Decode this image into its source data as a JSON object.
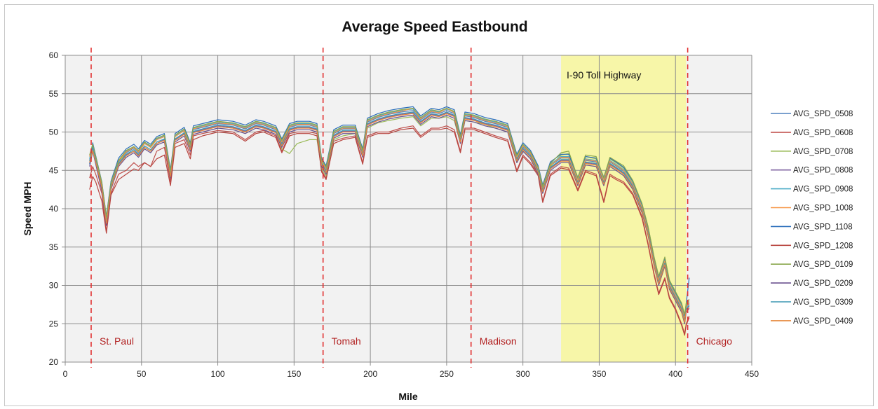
{
  "chart_data": {
    "type": "line",
    "title": "Average Speed Eastbound",
    "xlabel": "Mile",
    "ylabel": "Speed MPH",
    "xlim": [
      0,
      450
    ],
    "ylim": [
      20,
      60
    ],
    "xticks": [
      0,
      50,
      100,
      150,
      200,
      250,
      300,
      350,
      400,
      450
    ],
    "yticks": [
      20,
      25,
      30,
      35,
      40,
      45,
      50,
      55,
      60
    ],
    "grid": true,
    "legend_position": "right",
    "x": [
      16,
      18,
      20,
      24,
      27,
      30,
      35,
      40,
      45,
      48,
      52,
      56,
      60,
      65,
      69,
      72,
      78,
      82,
      84,
      90,
      100,
      110,
      118,
      125,
      130,
      138,
      142,
      147,
      152,
      160,
      165,
      168,
      171,
      176,
      182,
      190,
      195,
      198,
      205,
      212,
      220,
      228,
      233,
      240,
      245,
      250,
      255,
      259,
      262,
      268,
      275,
      282,
      290,
      296,
      300,
      305,
      310,
      313,
      318,
      325,
      330,
      336,
      341,
      348,
      353,
      357,
      361,
      366,
      372,
      378,
      382,
      386,
      389,
      393,
      396,
      400,
      404,
      406,
      407,
      409
    ],
    "base": [
      46.5,
      48.2,
      46.5,
      43.0,
      38.5,
      43.0,
      46.0,
      47.2,
      47.8,
      47.2,
      48.3,
      47.8,
      48.8,
      49.2,
      44.5,
      49.2,
      50.0,
      48.0,
      50.2,
      50.5,
      51.0,
      50.8,
      50.3,
      51.0,
      50.8,
      50.2,
      48.5,
      50.5,
      50.8,
      50.8,
      50.5,
      46.0,
      45.0,
      49.7,
      50.3,
      50.3,
      47.2,
      51.2,
      51.8,
      52.2,
      52.5,
      52.7,
      51.5,
      52.5,
      52.3,
      52.7,
      52.3,
      49.0,
      52.0,
      51.8,
      51.3,
      51.0,
      50.5,
      46.5,
      48.0,
      47.0,
      45.0,
      42.5,
      45.5,
      46.5,
      46.5,
      43.5,
      46.2,
      46.0,
      43.5,
      46.0,
      45.5,
      44.8,
      43.0,
      40.0,
      37.0,
      33.0,
      30.5,
      33.0,
      30.0,
      28.5,
      27.0,
      25.5,
      27.0,
      27.5
    ],
    "series": [
      {
        "name": "AVG_SPD_0508",
        "values": [
          46.3,
          48.1,
          46.5,
          43.2,
          38.6,
          43.2,
          46.1,
          47.3,
          47.9,
          47.3,
          48.5,
          48.0,
          49.0,
          49.4,
          44.6,
          49.4,
          50.2,
          48.1,
          50.3,
          50.6,
          51.1,
          50.9,
          50.4,
          51.1,
          50.9,
          50.3,
          48.6,
          50.6,
          50.9,
          50.9,
          50.6,
          46.1,
          45.1,
          49.8,
          50.4,
          50.4,
          47.3,
          51.3,
          51.9,
          52.3,
          52.6,
          52.8,
          51.6,
          52.6,
          52.4,
          52.8,
          52.4,
          49.1,
          52.1,
          51.9,
          51.4,
          51.1,
          50.6,
          46.6,
          48.1,
          47.1,
          45.1,
          42.6,
          45.6,
          46.6,
          46.6,
          43.6,
          46.3,
          46.1,
          43.6,
          46.1,
          45.6,
          44.9,
          43.1,
          40.1,
          37.1,
          33.1,
          30.6,
          33.1,
          30.1,
          28.6,
          27.1,
          25.6,
          27.1,
          27.6
        ]
      },
      {
        "name": "AVG_SPD_0608",
        "values": [
          44.0,
          45.5,
          44.5,
          42.0,
          37.0,
          42.0,
          44.5,
          45.0,
          46.0,
          45.5,
          46.0,
          45.5,
          47.5,
          48.0,
          43.5,
          48.5,
          49.0,
          47.0,
          49.5,
          49.8,
          50.2,
          50.0,
          49.0,
          50.0,
          50.2,
          49.5,
          47.5,
          49.8,
          50.0,
          50.0,
          49.8,
          45.0,
          44.0,
          48.8,
          49.2,
          49.5,
          46.0,
          49.5,
          50.0,
          50.0,
          50.5,
          50.8,
          49.5,
          50.5,
          50.5,
          50.8,
          50.3,
          47.5,
          50.5,
          50.5,
          50.0,
          49.5,
          49.0,
          45.0,
          47.0,
          46.0,
          44.5,
          41.0,
          44.5,
          45.5,
          45.3,
          42.5,
          45.0,
          44.5,
          41.0,
          44.5,
          44.0,
          43.5,
          42.0,
          39.0,
          35.5,
          31.5,
          29.0,
          31.0,
          28.5,
          27.0,
          25.0,
          23.7,
          25.0,
          26.0
        ]
      },
      {
        "name": "AVG_SPD_0708",
        "values": [
          46.8,
          48.0,
          46.5,
          43.0,
          38.2,
          43.5,
          46.3,
          47.0,
          47.5,
          47.0,
          48.0,
          47.5,
          48.5,
          49.0,
          44.0,
          49.0,
          49.8,
          47.5,
          50.0,
          50.2,
          50.7,
          50.5,
          50.0,
          50.7,
          50.5,
          50.0,
          47.8,
          47.2,
          48.5,
          49.0,
          49.0,
          45.2,
          44.3,
          49.0,
          49.5,
          49.8,
          46.8,
          50.5,
          51.2,
          51.5,
          51.8,
          52.0,
          50.8,
          51.8,
          51.8,
          52.0,
          51.5,
          48.5,
          51.5,
          51.3,
          51.0,
          50.5,
          50.0,
          46.0,
          47.5,
          46.5,
          44.5,
          42.0,
          45.5,
          47.0,
          47.2,
          43.8,
          46.8,
          46.5,
          43.8,
          46.5,
          46.0,
          45.3,
          43.5,
          40.5,
          37.5,
          33.5,
          31.0,
          33.5,
          30.5,
          29.0,
          27.5,
          26.0,
          27.5,
          28.0
        ]
      },
      {
        "name": "AVG_SPD_0808",
        "values": [
          46.0,
          48.0,
          46.0,
          42.5,
          38.0,
          42.8,
          45.8,
          47.0,
          47.5,
          47.0,
          48.0,
          47.5,
          48.5,
          49.0,
          44.3,
          49.0,
          49.8,
          47.8,
          50.0,
          50.3,
          50.8,
          50.6,
          50.1,
          50.8,
          50.6,
          50.0,
          48.3,
          50.3,
          50.6,
          50.6,
          50.3,
          45.8,
          44.8,
          49.5,
          50.1,
          50.1,
          47.0,
          51.0,
          51.6,
          52.0,
          52.3,
          52.5,
          51.3,
          52.3,
          52.1,
          52.5,
          52.1,
          48.8,
          51.8,
          51.6,
          51.1,
          50.8,
          50.3,
          46.3,
          47.8,
          46.8,
          44.8,
          42.3,
          45.3,
          46.3,
          46.3,
          43.3,
          46.0,
          45.8,
          43.3,
          45.8,
          45.3,
          44.6,
          42.8,
          39.8,
          36.8,
          32.8,
          30.3,
          32.8,
          29.8,
          28.3,
          26.8,
          25.3,
          26.8,
          27.3
        ]
      },
      {
        "name": "AVG_SPD_0908",
        "values": [
          46.5,
          48.3,
          46.7,
          43.3,
          38.8,
          43.3,
          46.2,
          47.5,
          48.0,
          47.5,
          48.6,
          48.1,
          49.1,
          49.5,
          44.8,
          49.5,
          50.3,
          48.3,
          50.5,
          50.8,
          51.3,
          51.1,
          50.6,
          51.3,
          51.1,
          50.5,
          48.8,
          50.8,
          51.1,
          51.1,
          50.8,
          46.3,
          45.3,
          50.0,
          50.6,
          50.6,
          47.5,
          51.5,
          52.1,
          52.5,
          52.8,
          53.0,
          51.8,
          52.8,
          52.6,
          53.0,
          52.6,
          49.3,
          52.3,
          52.1,
          51.6,
          51.3,
          50.8,
          46.8,
          48.3,
          47.3,
          45.3,
          42.8,
          45.8,
          46.8,
          46.8,
          43.8,
          46.5,
          46.3,
          43.8,
          46.3,
          45.8,
          45.1,
          43.3,
          40.3,
          37.3,
          33.3,
          30.8,
          33.3,
          30.3,
          28.8,
          27.3,
          25.8,
          27.3,
          27.8
        ]
      },
      {
        "name": "AVG_SPD_1008",
        "values": [
          46.8,
          48.5,
          46.8,
          43.3,
          38.7,
          43.2,
          46.2,
          47.4,
          48.0,
          47.4,
          48.5,
          48.0,
          49.0,
          49.4,
          44.7,
          49.4,
          50.2,
          48.2,
          50.4,
          50.7,
          51.2,
          51.0,
          50.5,
          51.2,
          51.0,
          50.4,
          48.7,
          50.7,
          51.0,
          51.0,
          50.7,
          46.2,
          45.2,
          49.9,
          50.5,
          50.5,
          47.4,
          51.4,
          52.0,
          52.4,
          52.7,
          53.1,
          51.7,
          52.7,
          52.5,
          53.1,
          52.5,
          49.2,
          52.2,
          52.0,
          51.5,
          51.2,
          50.7,
          46.7,
          48.2,
          47.2,
          45.2,
          42.7,
          45.7,
          46.7,
          46.7,
          43.7,
          46.4,
          46.2,
          43.7,
          46.2,
          45.7,
          45.0,
          43.2,
          40.2,
          37.2,
          33.2,
          30.7,
          33.2,
          30.2,
          28.7,
          27.2,
          25.7,
          27.2,
          27.7
        ]
      },
      {
        "name": "AVG_SPD_1108",
        "values": [
          45.8,
          48.6,
          46.9,
          43.5,
          39.0,
          43.6,
          46.6,
          47.8,
          48.4,
          47.8,
          48.9,
          48.4,
          49.4,
          49.8,
          45.1,
          49.8,
          50.6,
          48.6,
          50.8,
          51.1,
          51.6,
          51.4,
          50.9,
          51.6,
          51.4,
          50.8,
          49.1,
          51.1,
          51.4,
          51.4,
          51.1,
          46.6,
          45.6,
          50.3,
          50.9,
          50.9,
          47.8,
          51.8,
          52.4,
          52.8,
          53.1,
          53.3,
          52.1,
          53.1,
          52.9,
          53.3,
          52.9,
          49.6,
          52.6,
          52.4,
          51.9,
          51.6,
          51.1,
          47.1,
          48.6,
          47.6,
          45.6,
          43.1,
          46.1,
          47.1,
          47.1,
          44.1,
          46.8,
          46.6,
          44.1,
          46.6,
          46.1,
          45.4,
          43.6,
          40.6,
          37.6,
          33.6,
          31.1,
          33.6,
          30.6,
          29.1,
          27.6,
          26.1,
          27.6,
          31.0
        ]
      },
      {
        "name": "AVG_SPD_1208",
        "values": [
          42.5,
          44.2,
          43.5,
          41.0,
          36.8,
          41.8,
          43.8,
          44.5,
          45.2,
          45.0,
          46.0,
          45.5,
          46.5,
          47.0,
          43.0,
          48.0,
          48.5,
          46.5,
          49.0,
          49.5,
          50.0,
          49.8,
          48.8,
          49.8,
          50.0,
          49.3,
          47.3,
          49.5,
          49.8,
          49.8,
          49.5,
          44.8,
          43.8,
          48.5,
          49.0,
          49.3,
          45.8,
          49.3,
          49.8,
          49.8,
          50.3,
          50.5,
          49.3,
          50.3,
          50.3,
          50.5,
          50.0,
          47.3,
          50.3,
          50.3,
          49.8,
          49.3,
          48.8,
          44.8,
          46.8,
          45.8,
          44.3,
          40.8,
          44.3,
          45.3,
          45.1,
          42.3,
          44.8,
          44.3,
          40.8,
          44.3,
          43.8,
          43.3,
          41.8,
          38.8,
          35.3,
          31.3,
          28.8,
          30.8,
          28.3,
          26.8,
          24.8,
          23.5,
          24.8,
          25.8
        ]
      },
      {
        "name": "AVG_SPD_0109",
        "values": [
          47.0,
          48.4,
          46.8,
          43.4,
          38.9,
          43.4,
          46.3,
          47.6,
          48.1,
          47.6,
          48.7,
          48.2,
          49.2,
          49.6,
          44.9,
          49.6,
          50.4,
          48.4,
          50.6,
          50.9,
          51.4,
          51.2,
          50.7,
          51.4,
          51.2,
          50.6,
          48.9,
          50.9,
          51.2,
          51.2,
          50.9,
          46.4,
          45.4,
          50.1,
          50.7,
          50.7,
          47.6,
          51.6,
          52.2,
          52.6,
          52.9,
          53.1,
          51.9,
          52.9,
          52.7,
          53.1,
          52.7,
          49.4,
          52.4,
          52.2,
          51.7,
          51.4,
          50.9,
          46.9,
          48.4,
          47.4,
          45.4,
          42.9,
          45.9,
          47.3,
          47.5,
          44.0,
          47.0,
          46.8,
          44.0,
          46.7,
          46.2,
          45.6,
          43.7,
          40.7,
          37.7,
          33.7,
          31.2,
          33.7,
          30.7,
          29.2,
          27.7,
          26.2,
          27.7,
          28.2
        ]
      },
      {
        "name": "AVG_SPD_0209",
        "values": [
          45.5,
          47.5,
          45.8,
          42.3,
          37.8,
          42.5,
          45.5,
          46.7,
          47.3,
          46.7,
          47.8,
          47.3,
          48.3,
          48.7,
          44.0,
          48.7,
          49.5,
          47.5,
          49.7,
          50.0,
          50.5,
          50.3,
          49.8,
          50.5,
          50.3,
          49.7,
          48.0,
          50.0,
          50.3,
          50.3,
          50.0,
          45.5,
          44.5,
          49.2,
          49.8,
          49.8,
          46.7,
          50.7,
          51.3,
          51.7,
          52.0,
          52.2,
          51.0,
          52.0,
          51.8,
          52.2,
          51.8,
          48.5,
          51.5,
          51.3,
          50.8,
          50.5,
          50.0,
          46.0,
          47.5,
          46.5,
          44.5,
          42.0,
          45.0,
          46.0,
          46.0,
          43.0,
          45.7,
          45.5,
          43.0,
          45.5,
          45.0,
          44.3,
          42.5,
          39.5,
          36.5,
          32.5,
          30.0,
          32.5,
          29.5,
          28.0,
          26.5,
          25.0,
          26.5,
          27.0
        ]
      },
      {
        "name": "AVG_SPD_0309",
        "values": [
          46.2,
          48.0,
          46.3,
          42.8,
          38.3,
          42.9,
          45.9,
          47.1,
          47.7,
          47.1,
          48.2,
          47.7,
          48.7,
          49.1,
          44.4,
          49.1,
          49.9,
          47.9,
          50.1,
          50.4,
          50.9,
          50.7,
          50.2,
          50.9,
          50.7,
          50.1,
          48.4,
          50.4,
          50.7,
          50.7,
          50.4,
          45.9,
          44.9,
          49.6,
          50.2,
          50.2,
          47.1,
          51.1,
          51.7,
          52.1,
          52.4,
          52.6,
          51.4,
          52.4,
          52.2,
          52.6,
          52.2,
          48.9,
          51.9,
          51.7,
          51.2,
          50.9,
          50.4,
          46.4,
          47.9,
          46.9,
          44.9,
          42.4,
          45.4,
          46.4,
          46.4,
          43.4,
          46.1,
          45.9,
          43.4,
          45.9,
          45.4,
          44.7,
          42.9,
          39.9,
          36.9,
          32.9,
          30.4,
          32.9,
          29.9,
          28.4,
          26.9,
          25.4,
          26.9,
          27.4
        ]
      },
      {
        "name": "AVG_SPD_0409",
        "values": [
          46.0,
          47.6,
          46.1,
          42.8,
          38.1,
          42.7,
          45.7,
          46.9,
          47.5,
          46.9,
          48.0,
          47.5,
          48.5,
          48.9,
          44.2,
          48.9,
          49.7,
          47.7,
          49.9,
          50.2,
          50.7,
          50.5,
          50.0,
          50.7,
          50.5,
          49.9,
          48.2,
          50.2,
          50.5,
          50.5,
          50.2,
          45.7,
          44.7,
          49.4,
          50.0,
          50.0,
          46.9,
          50.9,
          51.5,
          51.9,
          52.2,
          52.4,
          51.2,
          52.2,
          52.0,
          52.4,
          52.0,
          48.7,
          51.7,
          51.5,
          51.0,
          50.7,
          50.2,
          46.2,
          47.7,
          46.7,
          44.7,
          42.2,
          45.2,
          46.2,
          46.2,
          43.2,
          45.9,
          45.7,
          43.2,
          45.7,
          45.2,
          44.5,
          42.7,
          39.7,
          36.7,
          32.7,
          30.2,
          32.7,
          29.7,
          28.2,
          26.7,
          25.2,
          26.7,
          27.2
        ]
      }
    ],
    "colors": [
      "#4f81bd",
      "#c0504d",
      "#9bbb59",
      "#8064a2",
      "#4bacc6",
      "#f79646",
      "#2c6fbb",
      "#b8443f",
      "#8aa84d",
      "#6b5290",
      "#3f99b3",
      "#e6873c"
    ],
    "markers": [
      {
        "x": 17,
        "label": "St. Paul"
      },
      {
        "x": 169,
        "label": "Tomah"
      },
      {
        "x": 266,
        "label": "Madison"
      },
      {
        "x": 408,
        "label": "Chicago"
      }
    ],
    "highlight": {
      "x_start": 325,
      "x_end": 407,
      "label": "I-90 Toll Highway",
      "color": "#f7f6a8"
    },
    "plot_background": "#f2f2f2",
    "marker_color": "#e23030"
  }
}
